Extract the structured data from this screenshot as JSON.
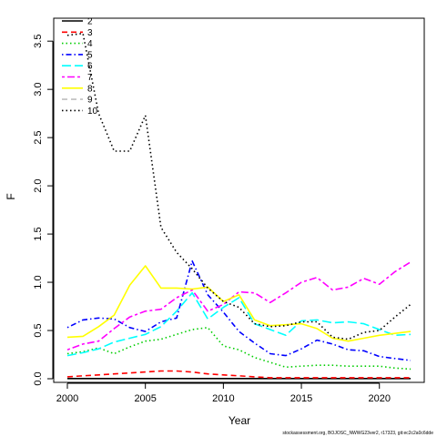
{
  "chart_data": {
    "type": "line",
    "xlabel": "Year",
    "ylabel": "F",
    "xlim": [
      2000,
      2022
    ],
    "ylim": [
      0,
      3.7
    ],
    "x_ticks": [
      2000,
      2005,
      2010,
      2015,
      2020
    ],
    "y_ticks": [
      0.0,
      0.5,
      1.0,
      1.5,
      2.0,
      2.5,
      3.0,
      3.5
    ],
    "x_tick_labels": [
      "2000",
      "2005",
      "2010",
      "2015",
      "2020"
    ],
    "y_tick_labels": [
      "0.0",
      "0.5",
      "1.0",
      "1.5",
      "2.0",
      "2.5",
      "3.0",
      "3.5"
    ],
    "legend_position": "top-left",
    "grid": false,
    "footer": "stockassessment.org, BOJOSC_NWWG23ver2, r17323, git:ec2c2a0c6dde",
    "x": [
      2000,
      2001,
      2002,
      2003,
      2004,
      2005,
      2006,
      2007,
      2008,
      2009,
      2010,
      2011,
      2012,
      2013,
      2014,
      2015,
      2016,
      2017,
      2018,
      2019,
      2020,
      2021,
      2022
    ],
    "series": [
      {
        "name": "2",
        "color": "#000000",
        "dash": "solid",
        "values": [
          0.002,
          0.002,
          0.002,
          0.002,
          0.002,
          0.002,
          0.002,
          0.002,
          0.002,
          0.002,
          0.002,
          0.002,
          0.002,
          0.002,
          0.002,
          0.002,
          0.002,
          0.002,
          0.002,
          0.002,
          0.002,
          0.002,
          0.002
        ]
      },
      {
        "name": "3",
        "color": "#ff0000",
        "dash": "dashed",
        "values": [
          0.02,
          0.03,
          0.04,
          0.05,
          0.06,
          0.07,
          0.08,
          0.08,
          0.07,
          0.05,
          0.04,
          0.03,
          0.02,
          0.01,
          0.01,
          0.01,
          0.01,
          0.01,
          0.01,
          0.01,
          0.01,
          0.01,
          0.01
        ]
      },
      {
        "name": "4",
        "color": "#00cd00",
        "dash": "dotted",
        "values": [
          0.26,
          0.28,
          0.32,
          0.26,
          0.33,
          0.39,
          0.41,
          0.46,
          0.51,
          0.53,
          0.34,
          0.3,
          0.22,
          0.17,
          0.12,
          0.13,
          0.14,
          0.14,
          0.13,
          0.13,
          0.13,
          0.11,
          0.1
        ]
      },
      {
        "name": "5",
        "color": "#0000ff",
        "dash": "dotdash",
        "values": [
          0.53,
          0.61,
          0.63,
          0.62,
          0.53,
          0.49,
          0.59,
          0.63,
          1.22,
          0.87,
          0.69,
          0.49,
          0.37,
          0.26,
          0.24,
          0.31,
          0.4,
          0.36,
          0.3,
          0.29,
          0.23,
          0.21,
          0.19
        ]
      },
      {
        "name": "6",
        "color": "#00ffff",
        "dash": "longdash",
        "values": [
          0.24,
          0.27,
          0.31,
          0.38,
          0.42,
          0.46,
          0.54,
          0.7,
          0.89,
          0.62,
          0.74,
          0.84,
          0.57,
          0.51,
          0.45,
          0.6,
          0.61,
          0.58,
          0.59,
          0.57,
          0.51,
          0.45,
          0.46
        ]
      },
      {
        "name": "7",
        "color": "#ff00ff",
        "dash": "twodash",
        "values": [
          0.3,
          0.36,
          0.39,
          0.52,
          0.64,
          0.7,
          0.72,
          0.84,
          0.92,
          0.7,
          0.77,
          0.9,
          0.89,
          0.79,
          0.89,
          1.0,
          1.05,
          0.92,
          0.95,
          1.04,
          0.98,
          1.11,
          1.21
        ]
      },
      {
        "name": "8",
        "color": "#ffff00",
        "dash": "solid",
        "values": [
          0.43,
          0.44,
          0.54,
          0.66,
          0.97,
          1.17,
          0.94,
          0.94,
          0.93,
          0.95,
          0.8,
          0.87,
          0.61,
          0.55,
          0.56,
          0.57,
          0.52,
          0.42,
          0.39,
          0.42,
          0.45,
          0.47,
          0.49
        ]
      },
      {
        "name": "9",
        "color": "#bebebe",
        "dash": "dashed",
        "values": [
          null,
          null,
          null,
          null,
          null,
          null,
          null,
          null,
          null,
          null,
          null,
          null,
          null,
          null,
          null,
          null,
          null,
          null,
          null,
          null,
          null,
          null,
          null
        ]
      },
      {
        "name": "10",
        "color": "#000000",
        "dash": "dotted",
        "values": [
          3.56,
          3.58,
          2.75,
          2.36,
          2.36,
          2.73,
          1.57,
          1.31,
          1.14,
          0.94,
          0.8,
          0.74,
          0.57,
          0.54,
          0.55,
          0.59,
          0.59,
          0.43,
          0.41,
          0.48,
          0.5,
          0.64,
          0.77
        ]
      }
    ]
  }
}
